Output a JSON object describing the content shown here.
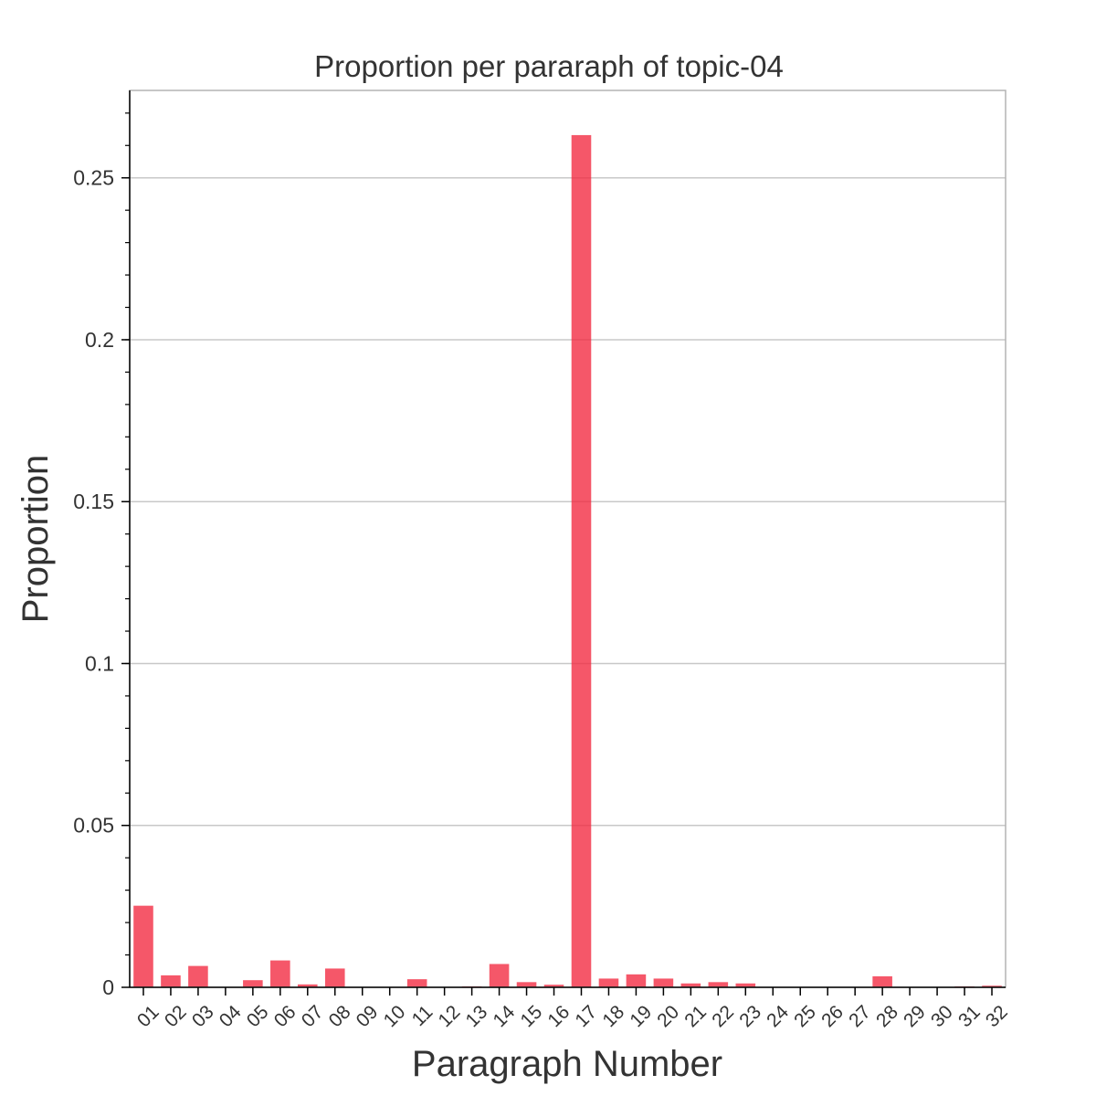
{
  "chart_data": {
    "type": "bar",
    "title": "Proportion per pararaph of topic-04",
    "xlabel": "Paragraph Number",
    "ylabel": "Proportion",
    "categories": [
      "01",
      "02",
      "03",
      "04",
      "05",
      "06",
      "07",
      "08",
      "09",
      "10",
      "11",
      "12",
      "13",
      "14",
      "15",
      "16",
      "17",
      "18",
      "19",
      "20",
      "21",
      "22",
      "23",
      "24",
      "25",
      "26",
      "27",
      "28",
      "29",
      "30",
      "31",
      "32"
    ],
    "values": [
      0.0252,
      0.0037,
      0.0066,
      0.0,
      0.0022,
      0.0083,
      0.0009,
      0.0058,
      0.0,
      0.0,
      0.0025,
      0.0,
      0.0003,
      0.0072,
      0.0016,
      0.0008,
      0.2632,
      0.0027,
      0.004,
      0.0027,
      0.0012,
      0.0016,
      0.0012,
      0.0,
      0.0,
      0.0,
      0.0,
      0.0034,
      0.0,
      0.0,
      0.0003,
      0.0005
    ],
    "ylim": [
      0,
      0.277
    ],
    "yticks": [
      0,
      0.05,
      0.1,
      0.15,
      0.2,
      0.25
    ],
    "ytick_labels": [
      "0",
      "0.05",
      "0.1",
      "0.15",
      "0.2",
      "0.25"
    ],
    "grid": true,
    "bar_color": "#f2283f",
    "grid_color": "#c8c8c8"
  }
}
